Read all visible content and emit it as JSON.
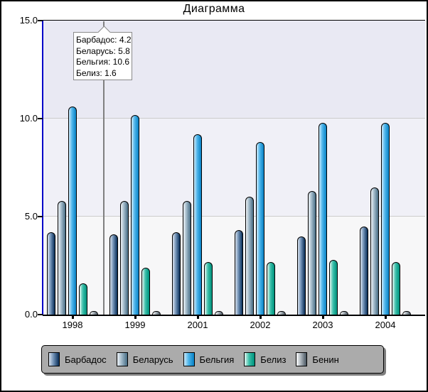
{
  "chart": {
    "title": "Диаграмма",
    "tooltip": {
      "lines": [
        "Барбадос: 4.2",
        "Беларусь: 5.8",
        "Бельгия: 10.6",
        "Белиз: 1.6"
      ]
    }
  },
  "chart_data": {
    "type": "bar",
    "title": "Диаграмма",
    "categories": [
      "1998",
      "1999",
      "2001",
      "2002",
      "2003",
      "2004"
    ],
    "series": [
      {
        "name": "Барбадос",
        "values": [
          4.2,
          4.1,
          4.2,
          4.3,
          4.0,
          4.5
        ],
        "color_from": "#d8e2ee",
        "color_mid": "#6e8fb4",
        "color_to": "#10355f"
      },
      {
        "name": "Беларусь",
        "values": [
          5.8,
          5.8,
          5.8,
          6.0,
          6.3,
          6.5
        ],
        "color_from": "#eef3f7",
        "color_mid": "#9db6c6",
        "color_to": "#4e7289"
      },
      {
        "name": "Бельгия",
        "values": [
          10.6,
          10.2,
          9.2,
          8.8,
          9.8,
          9.8
        ],
        "color_from": "#cdeafa",
        "color_mid": "#4cb4ea",
        "color_to": "#0e86c8"
      },
      {
        "name": "Белиз",
        "values": [
          1.6,
          2.4,
          2.7,
          2.7,
          2.8,
          2.7
        ],
        "color_from": "#e4f6f0",
        "color_mid": "#3cc0aa",
        "color_to": "#00947f"
      },
      {
        "name": "Бенин",
        "values": [
          0.2,
          0.2,
          0.2,
          0.2,
          0.2,
          0.2
        ],
        "color_from": "#fbfbfb",
        "color_mid": "#aab3ba",
        "color_to": "#505c66"
      }
    ],
    "ylim": [
      0,
      15
    ],
    "yticks": [
      {
        "label": "15.0",
        "value": 15
      },
      {
        "label": "10.0",
        "value": 10
      },
      {
        "label": "5.0",
        "value": 5
      },
      {
        "label": "0.0",
        "value": 0
      }
    ],
    "grid": true,
    "legend_position": "bottom",
    "annotation": {
      "attached_between": [
        "1998",
        "1999"
      ],
      "lines": [
        "Барбадос: 4.2",
        "Беларусь: 5.8",
        "Бельгия: 10.6",
        "Белиз: 1.6"
      ]
    }
  },
  "colors": {
    "y_axis": "#0000c8",
    "band_top": "#e9e9f3",
    "band_mid": "#f0f0f7",
    "band_bottom": "#f7f7f8",
    "gridline": "#cccccc",
    "callout_line": "#808080",
    "legend_bg": "#ababab",
    "tooltip_border": "#8a8a8a"
  }
}
